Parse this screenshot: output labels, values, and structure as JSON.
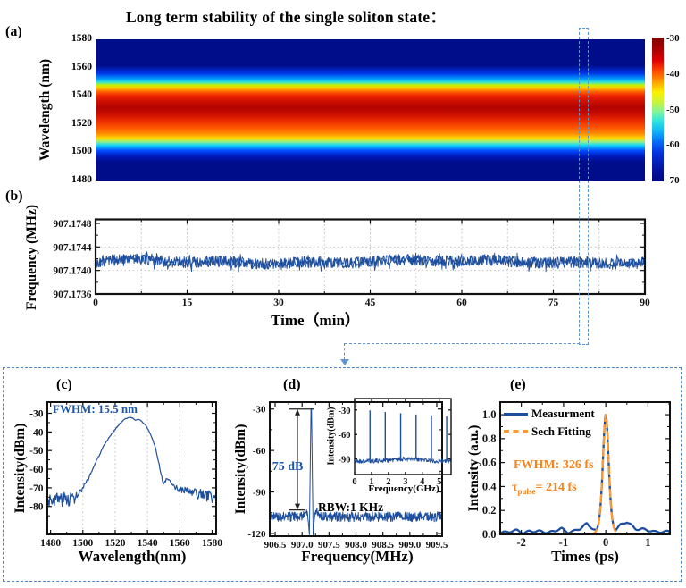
{
  "title": "Long term stability of the single soliton state：",
  "panels": {
    "a": {
      "label": "(a)"
    },
    "b": {
      "label": "(b)"
    },
    "c": {
      "label": "(c)"
    },
    "d": {
      "label": "(d)"
    },
    "e": {
      "label": "(e)"
    }
  },
  "colors": {
    "line_blue": "#1e4f9e",
    "text_blue": "#1d55ae",
    "fit_orange": "#ff9a2e",
    "ann_orange": "#f5841c",
    "dash_blue": "#5e94cf",
    "grid_gray": "#b8b8b8",
    "axis_black": "#111111"
  },
  "chart_data": [
    {
      "panel": "a",
      "type": "heatmap",
      "ylabel": "Wavelength (nm)",
      "ylim": [
        1480,
        1580
      ],
      "yticks": [
        1580,
        1560,
        1540,
        1520,
        1500,
        1480
      ],
      "ytick_labels": [
        "1580",
        "1560",
        "1540",
        "1520",
        "1500",
        "1480"
      ],
      "colorbar": {
        "ticks": [
          "-30",
          "-40",
          "-50",
          "-60",
          "-70"
        ],
        "range_dbm": [
          -30,
          -70
        ],
        "gradient": [
          [
            0,
            "#7f0000"
          ],
          [
            0.08,
            "#ab0000"
          ],
          [
            0.16,
            "#e00000"
          ],
          [
            0.22,
            "#fb3c00"
          ],
          [
            0.28,
            "#ff7e00"
          ],
          [
            0.33,
            "#ffb900"
          ],
          [
            0.38,
            "#fdf000"
          ],
          [
            0.45,
            "#c8f43c"
          ],
          [
            0.52,
            "#7cf49f"
          ],
          [
            0.58,
            "#2ee4e0"
          ],
          [
            0.65,
            "#0fb6f8"
          ],
          [
            0.72,
            "#0671f8"
          ],
          [
            0.8,
            "#0433e0"
          ],
          [
            0.9,
            "#0216a8"
          ],
          [
            1,
            "#01077f"
          ]
        ]
      },
      "gradient": [
        [
          0,
          "#000d8a"
        ],
        [
          0.185,
          "#000d8a"
        ],
        [
          0.24,
          "#0033e8"
        ],
        [
          0.285,
          "#00aaff"
        ],
        [
          0.305,
          "#3ee8c8"
        ],
        [
          0.325,
          "#c8f000"
        ],
        [
          0.345,
          "#ffc800"
        ],
        [
          0.37,
          "#ff6400"
        ],
        [
          0.4,
          "#ee2200"
        ],
        [
          0.44,
          "#cc0f00"
        ],
        [
          0.48,
          "#b20400"
        ],
        [
          0.52,
          "#c30900"
        ],
        [
          0.57,
          "#e82600"
        ],
        [
          0.63,
          "#ff5a00"
        ],
        [
          0.67,
          "#ff9000"
        ],
        [
          0.7,
          "#ffd800"
        ],
        [
          0.725,
          "#9cf080"
        ],
        [
          0.75,
          "#12d8f8"
        ],
        [
          0.79,
          "#0048ff"
        ],
        [
          0.83,
          "#0018b8"
        ],
        [
          0.87,
          "#000d8a"
        ],
        [
          1,
          "#000d8a"
        ]
      ],
      "spectral_profile_nm_dbm": [
        [
          1580,
          -70
        ],
        [
          1557,
          -69
        ],
        [
          1552,
          -60
        ],
        [
          1549,
          -50
        ],
        [
          1546,
          -41
        ],
        [
          1542,
          -35
        ],
        [
          1536,
          -31
        ],
        [
          1531,
          -30
        ],
        [
          1524,
          -31
        ],
        [
          1519,
          -34
        ],
        [
          1515,
          -38
        ],
        [
          1512,
          -43
        ],
        [
          1509,
          -50
        ],
        [
          1506,
          -57
        ],
        [
          1503,
          -64
        ],
        [
          1500,
          -68
        ],
        [
          1480,
          -70
        ]
      ]
    },
    {
      "panel": "b",
      "type": "scatter",
      "ylabel": "Frequency (MHz)",
      "xlabel": "Time（min）",
      "xlim": [
        0,
        90
      ],
      "xticks": [
        0,
        15,
        30,
        45,
        60,
        75,
        90
      ],
      "xtick_labels": [
        "0",
        "15",
        "30",
        "45",
        "60",
        "75",
        "90"
      ],
      "minor_xticks": [
        7.5,
        22.5,
        37.5,
        52.5,
        67.5,
        82.5
      ],
      "ylim": [
        907.1736,
        907.174868
      ],
      "yticks": [
        907.1748,
        907.1744,
        907.174,
        907.1736
      ],
      "ytick_labels": [
        "907.1748",
        "907.1744",
        "907.1740",
        "907.1736"
      ],
      "minor_yticks": [
        907.1738,
        907.1742,
        907.1746
      ],
      "grid_x": [
        7.5,
        15,
        22.5,
        30,
        37.5,
        45,
        52.5,
        60,
        67.5,
        75,
        82.5
      ],
      "grid_y": [
        907.1744,
        907.174
      ],
      "mean_mhz": 907.17415,
      "scatter_halfwidth_mhz": 0.0001,
      "start_dip_mhz": 907.174,
      "n_points": 900
    },
    {
      "panel": "c",
      "type": "line",
      "xlabel": "Wavelength(nm)",
      "ylabel": "Intensity(dBm)",
      "annotation": "FWHM: 15.5 nm",
      "fwhm_nm": 15.5,
      "xlim": [
        1478,
        1582.5
      ],
      "xticks": [
        1480,
        1500,
        1520,
        1540,
        1560,
        1580
      ],
      "xtick_labels": [
        "1480",
        "1500",
        "1520",
        "1540",
        "1560",
        "1580"
      ],
      "minor_xticks": [
        1490,
        1510,
        1530,
        1550,
        1570
      ],
      "ylim": [
        -95,
        -24
      ],
      "yticks": [
        -30,
        -40,
        -50,
        -60,
        -70,
        -80
      ],
      "ytick_labels": [
        "-30",
        "-40",
        "-50",
        "-60",
        "-70",
        "-80"
      ],
      "minor_yticks": [
        -35,
        -45,
        -55,
        -65,
        -75,
        -85
      ],
      "grid_x": [
        1500,
        1520,
        1540,
        1560
      ],
      "points": [
        [
          1478,
          -76,
          4
        ],
        [
          1490,
          -76,
          4
        ],
        [
          1496,
          -75,
          3.5
        ],
        [
          1499,
          -72,
          2
        ],
        [
          1502,
          -67.5,
          1
        ],
        [
          1505,
          -62,
          0.7
        ],
        [
          1509,
          -54.5,
          0.5
        ],
        [
          1513,
          -47.5,
          0.4
        ],
        [
          1517,
          -42,
          0.3
        ],
        [
          1521,
          -37.5,
          0.3
        ],
        [
          1524,
          -34.5,
          0.2
        ],
        [
          1526.5,
          -32.8,
          0.15
        ],
        [
          1529,
          -32.2,
          0.1
        ],
        [
          1531,
          -32.6,
          0.1
        ],
        [
          1532.5,
          -33.8,
          0.1
        ],
        [
          1534,
          -33.2,
          0.1
        ],
        [
          1535.5,
          -33.6,
          0.1
        ],
        [
          1537,
          -34.8,
          0.15
        ],
        [
          1539,
          -36.6,
          0.2
        ],
        [
          1541,
          -39.5,
          0.25
        ],
        [
          1543,
          -43.5,
          0.3
        ],
        [
          1545,
          -49,
          0.4
        ],
        [
          1547,
          -56.5,
          0.5
        ],
        [
          1548.5,
          -63,
          0.6
        ],
        [
          1549.7,
          -67.8,
          0.6
        ],
        [
          1551,
          -66.5,
          0.6
        ],
        [
          1552.3,
          -64.6,
          0.6
        ],
        [
          1553.6,
          -66,
          0.7
        ],
        [
          1555,
          -68.5,
          1
        ],
        [
          1557,
          -70,
          1.5
        ],
        [
          1560,
          -71,
          2
        ],
        [
          1565,
          -72,
          2.5
        ],
        [
          1572,
          -73.5,
          3
        ],
        [
          1582.5,
          -75,
          4
        ]
      ]
    },
    {
      "panel": "d",
      "type": "line",
      "xlabel": "Frequency(MHz)",
      "ylabel": "Intensity(dBm)",
      "snr_label": "75 dB",
      "rbw_label": "RBW:1 KHz",
      "xlim": [
        906.4,
        909.6
      ],
      "xticks": [
        906.5,
        907,
        907.5,
        908,
        908.5,
        909,
        909.5
      ],
      "xtick_labels": [
        "906.5",
        "907.0",
        "907.5",
        "908.0",
        "908.5",
        "909.0",
        "909.5"
      ],
      "minor_xticks": [
        906.75,
        907.25,
        907.75,
        908.25,
        908.75,
        909.25
      ],
      "ylim": [
        -122,
        -25
      ],
      "yticks": [
        -30,
        -60,
        -90,
        -120
      ],
      "ytick_labels": [
        "-30",
        "-60",
        "-90",
        "-120"
      ],
      "minor_yticks": [
        -45,
        -75,
        -105
      ],
      "peak_mhz": 907.17,
      "peak_dbm": -30,
      "noise_floor_dbm": -108,
      "snr_db": 75,
      "points": [
        [
          906.4,
          -108,
          3.6
        ],
        [
          906.95,
          -108,
          3.6
        ],
        [
          907.02,
          -107,
          3
        ],
        [
          907.07,
          -103,
          2.5
        ],
        [
          907.1,
          -106,
          2
        ],
        [
          907.12,
          -114,
          1
        ],
        [
          907.135,
          -121,
          0.3
        ],
        [
          907.165,
          -30.5,
          0
        ],
        [
          907.17,
          -30,
          0
        ],
        [
          907.175,
          -30.5,
          0
        ],
        [
          907.205,
          -121,
          0.3
        ],
        [
          907.22,
          -114,
          1
        ],
        [
          907.24,
          -106,
          2
        ],
        [
          907.27,
          -103,
          2.5
        ],
        [
          907.32,
          -107,
          3
        ],
        [
          907.4,
          -108,
          3.6
        ],
        [
          909.6,
          -108,
          3.6
        ]
      ]
    },
    {
      "panel": "d_inset",
      "type": "line",
      "xlabel": "Frequency(GHz)",
      "ylabel": "Intensity(dBm)",
      "xlim": [
        0,
        5.7
      ],
      "xticks": [
        0,
        1,
        2,
        3,
        4,
        5
      ],
      "xtick_labels": [
        "0",
        "1",
        "2",
        "3",
        "4",
        "5"
      ],
      "ylim": [
        -109,
        -16
      ],
      "yticks": [
        -30,
        -60,
        -90
      ],
      "ytick_labels": [
        "-30",
        "-60",
        "-90"
      ],
      "harmonics_ghz": [
        0.91,
        1.81,
        2.72,
        3.63,
        4.54,
        5.44
      ],
      "harmonic_peaks_dbm": [
        -30.5,
        -32.5,
        -34,
        -35.5,
        -36.5,
        -37.5
      ],
      "noise_floor": [
        [
          0,
          -93,
          2.8
        ],
        [
          1.5,
          -92,
          2.8
        ],
        [
          2.5,
          -90.5,
          2.8
        ],
        [
          3.2,
          -90,
          2.8
        ],
        [
          4,
          -91,
          2.8
        ],
        [
          5,
          -92.5,
          2.8
        ],
        [
          5.7,
          -92.5,
          2.8
        ]
      ]
    },
    {
      "panel": "e",
      "type": "line",
      "xlabel": "Times (ps)",
      "ylabel": "Intensity (a.u.)",
      "legend": [
        "Measurment",
        "Sech Fitting"
      ],
      "annotations": {
        "fwhm": "FWHM: 326 fs",
        "tau_symbol": "τ",
        "tau_subscript": "pulse",
        "tau_rest": "= 214 fs"
      },
      "fwhm_ps": 0.326,
      "tau_pulse_fs": 214,
      "fit_type": "sech2",
      "xlim": [
        -2.5,
        1.52
      ],
      "xticks": [
        -2,
        -1,
        0,
        1
      ],
      "xtick_labels": [
        "-2",
        "-1",
        "0",
        "1"
      ],
      "minor_xticks": [
        -1.5,
        -0.5,
        0.5,
        1.5
      ],
      "ylim": [
        0,
        1.105
      ],
      "yticks": [
        1,
        0.8,
        0.6,
        0.4,
        0.2,
        0
      ],
      "ytick_labels": [
        "1.0",
        "0.8",
        "0.6",
        "0.4",
        "0.2",
        "0.0"
      ],
      "minor_yticks": [
        0.1,
        0.3,
        0.5,
        0.7,
        0.9
      ],
      "measurement_baseline": [
        [
          -2.5,
          0.022
        ],
        [
          -2.3,
          0.02
        ],
        [
          -2.1,
          0.03
        ],
        [
          -1.95,
          0.018
        ],
        [
          -1.8,
          0.028
        ],
        [
          -1.65,
          0.02
        ],
        [
          -1.5,
          0.025
        ],
        [
          -1.35,
          0.02
        ],
        [
          -1.2,
          0.028
        ],
        [
          -1.05,
          0.045
        ],
        [
          -0.9,
          0.022
        ],
        [
          -0.75,
          0.03
        ],
        [
          -0.6,
          0.045
        ],
        [
          -0.45,
          0.088
        ],
        [
          -0.35,
          0.065
        ],
        [
          -0.25,
          0.04
        ],
        [
          -0.15,
          0.012
        ],
        [
          0,
          0
        ],
        [
          0.15,
          0.012
        ],
        [
          0.25,
          0.05
        ],
        [
          0.35,
          0.08
        ],
        [
          0.5,
          0.1
        ],
        [
          0.6,
          0.075
        ],
        [
          0.7,
          0.05
        ],
        [
          0.85,
          0.048
        ],
        [
          1,
          0.03
        ],
        [
          1.15,
          0.02
        ],
        [
          1.3,
          0.028
        ],
        [
          1.45,
          0.022
        ],
        [
          1.52,
          0.025
        ]
      ]
    }
  ]
}
